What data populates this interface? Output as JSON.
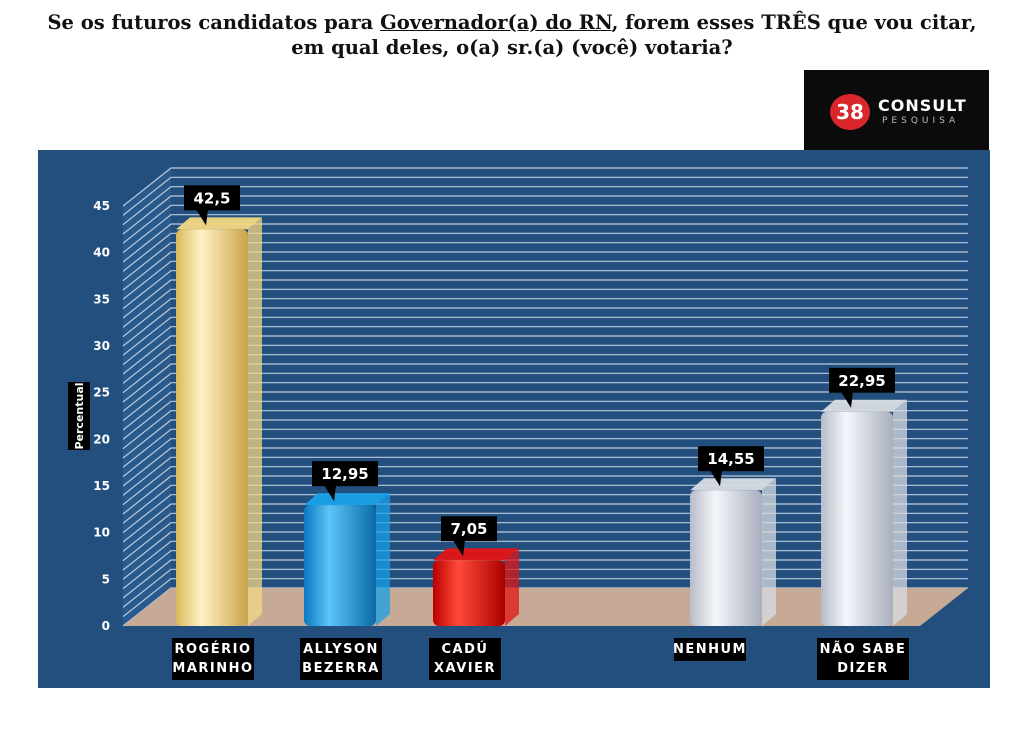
{
  "title": {
    "line1_prefix": "Se os futuros candidatos para ",
    "line1_underlined": "Governador(a) do RN",
    "line1_suffix": ", forem esses  TRÊS que vou citar,",
    "line2": "em qual deles, o(a) sr.(a)  (você) votaria?"
  },
  "logo": {
    "number": "38",
    "brand": "CONSULT",
    "sub": "PESQUISA"
  },
  "colors": {
    "panel": "#234f7e",
    "bar_yellow": "#f3d784",
    "bar_blue": "#1aa0e6",
    "bar_red": "#e11414",
    "bar_gray": "#d9dce3",
    "floor": "#c7aa96"
  },
  "chart_data": {
    "type": "bar",
    "ylabel": "Percentual",
    "ylim": [
      0,
      45
    ],
    "yticks": [
      "0",
      "5",
      "10",
      "15",
      "20",
      "25",
      "30",
      "35",
      "40",
      "45"
    ],
    "grid": true,
    "categories": [
      {
        "line1": "ROGÉRIO",
        "line2": "MARINHO",
        "value": 42.5,
        "label": "42,5",
        "color": "#f3d784"
      },
      {
        "line1": "ALLYSON",
        "line2": "BEZERRA",
        "value": 12.95,
        "label": "12,95",
        "color": "#1aa0e6"
      },
      {
        "line1": "CADÚ",
        "line2": "XAVIER",
        "value": 7.05,
        "label": "7,05",
        "color": "#e11414"
      },
      {
        "line1": "NENHUM",
        "line2": "",
        "value": 14.55,
        "label": "14,55",
        "color": "#d9dce3"
      },
      {
        "line1": "NÃO SABE",
        "line2": "DIZER",
        "value": 22.95,
        "label": "22,95",
        "color": "#d9dce3"
      }
    ]
  }
}
